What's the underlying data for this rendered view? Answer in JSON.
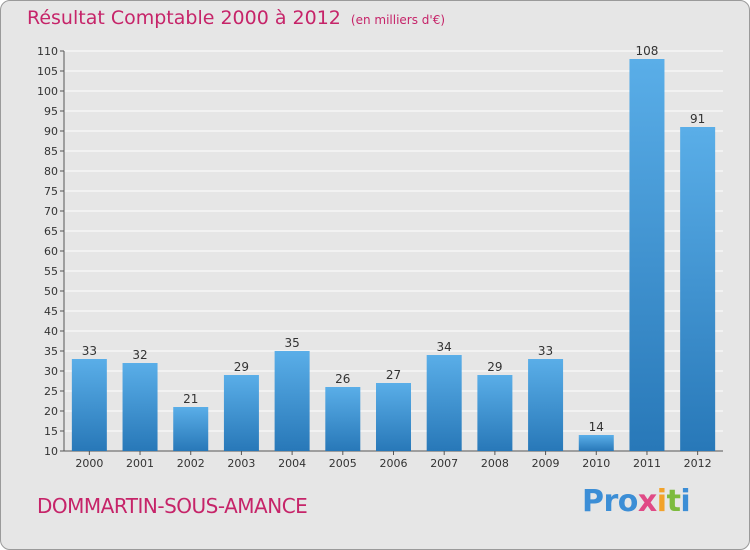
{
  "title": "Résultat Comptable 2000 à 2012",
  "unit_note": "(en milliers d'€)",
  "commune": "DOMMARTIN-SOUS-AMANCE",
  "logo": {
    "p1": "Pro",
    "p2": "x",
    "p3": "i",
    "p4": "t",
    "p5": "i"
  },
  "colors": {
    "bar_top": "#5aaee8",
    "bar_bottom": "#2878b8",
    "title": "#c62469",
    "background": "#e6e6e6"
  },
  "chart_data": {
    "type": "bar",
    "title": "Résultat Comptable 2000 à 2012",
    "subtitle": "(en milliers d'€)",
    "xlabel": "",
    "ylabel": "",
    "categories": [
      "2000",
      "2001",
      "2002",
      "2003",
      "2004",
      "2005",
      "2006",
      "2007",
      "2008",
      "2009",
      "2010",
      "2011",
      "2012"
    ],
    "values": [
      33,
      32,
      21,
      29,
      35,
      26,
      27,
      34,
      29,
      33,
      14,
      108,
      91
    ],
    "ylim": [
      10,
      110
    ],
    "yticks": [
      10,
      15,
      20,
      25,
      30,
      35,
      40,
      45,
      50,
      55,
      60,
      65,
      70,
      75,
      80,
      85,
      90,
      95,
      100,
      105,
      110
    ],
    "grid": true,
    "legend": "none"
  }
}
